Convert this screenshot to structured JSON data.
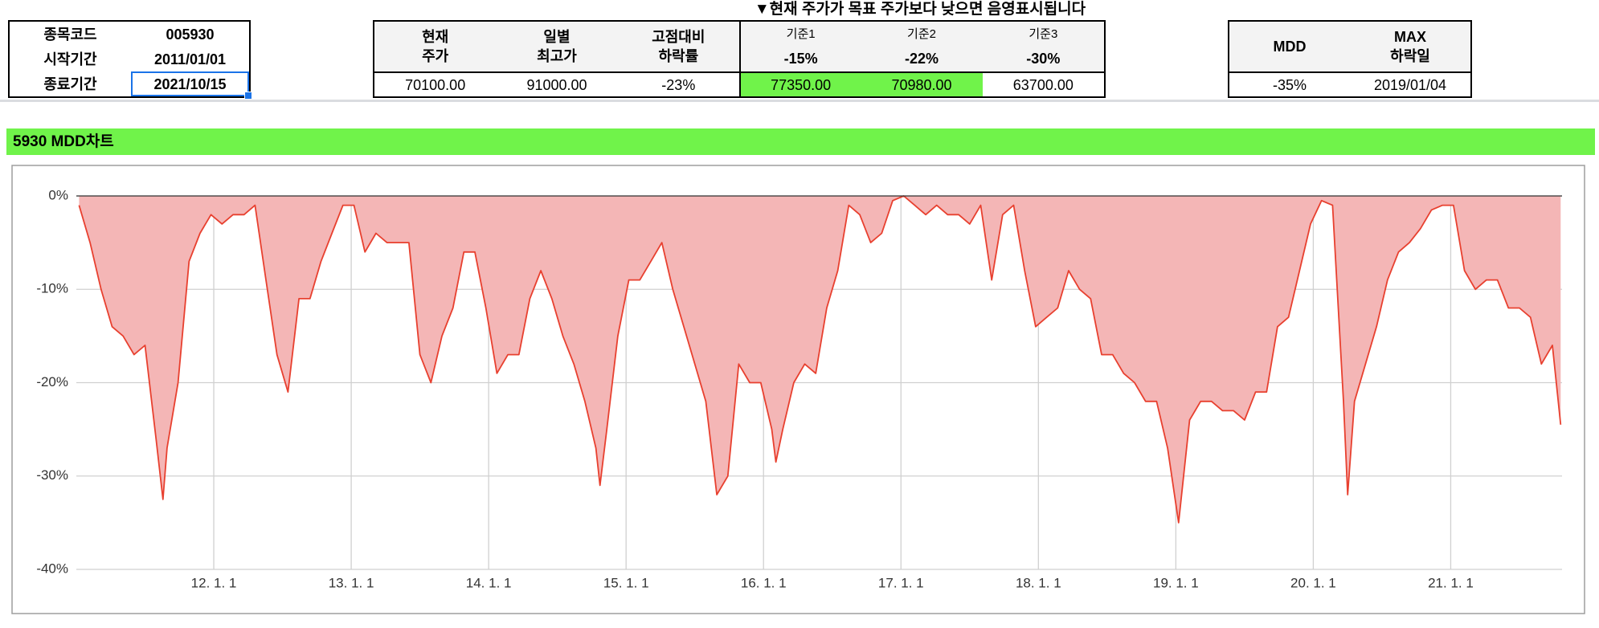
{
  "info": {
    "rows": [
      [
        "종목코드",
        "005930"
      ],
      [
        "시작기간",
        "2011/01/01"
      ],
      [
        "종료기간",
        "2021/10/15"
      ]
    ]
  },
  "price_table": {
    "note": "▼현재 주가가 목표 주가보다 낮으면 음영표시됩니다^^",
    "headers": [
      [
        "현재",
        "주가"
      ],
      [
        "일별",
        "최고가"
      ],
      [
        "고점대비",
        "하락률"
      ]
    ],
    "criteria": [
      {
        "name": "기준1",
        "rate": "-15%"
      },
      {
        "name": "기준2",
        "rate": "-22%"
      },
      {
        "name": "기준3",
        "rate": "-30%"
      }
    ],
    "values": [
      "70100.00",
      "91000.00",
      "-23%",
      "77350.00",
      "70980.00",
      "63700.00"
    ],
    "highlight": [
      false,
      false,
      false,
      true,
      true,
      false
    ],
    "highlight_color": "#70f34a"
  },
  "mdd_table": {
    "headers": [
      [
        "MDD"
      ],
      [
        "MAX",
        "하락일"
      ]
    ],
    "values": [
      "-35%",
      "2019/01/04"
    ]
  },
  "chart_data": {
    "type": "area",
    "title": "5930 MDD차트",
    "title_color": "#70f34a",
    "xlim": [
      2011,
      2021.81
    ],
    "xticks": [
      {
        "value": 2012,
        "label": "12. 1. 1"
      },
      {
        "value": 2013,
        "label": "13. 1. 1"
      },
      {
        "value": 2014,
        "label": "14. 1. 1"
      },
      {
        "value": 2015,
        "label": "15. 1. 1"
      },
      {
        "value": 2016,
        "label": "16. 1. 1"
      },
      {
        "value": 2017,
        "label": "17. 1. 1"
      },
      {
        "value": 2018,
        "label": "18. 1. 1"
      },
      {
        "value": 2019,
        "label": "19. 1. 1"
      },
      {
        "value": 2020,
        "label": "20. 1. 1"
      },
      {
        "value": 2021,
        "label": "21. 1. 1"
      }
    ],
    "ylim": [
      -40,
      0
    ],
    "yticks": [
      {
        "value": 0,
        "label": "0%"
      },
      {
        "value": -10,
        "label": "-10%"
      },
      {
        "value": -20,
        "label": "-20%"
      },
      {
        "value": -30,
        "label": "-30%"
      },
      {
        "value": -40,
        "label": "-40%"
      }
    ],
    "grid": true,
    "x": [
      2011.02,
      2011.1,
      2011.18,
      2011.26,
      2011.34,
      2011.42,
      2011.5,
      2011.58,
      2011.63,
      2011.66,
      2011.74,
      2011.82,
      2011.9,
      2011.98,
      2012.06,
      2012.14,
      2012.22,
      2012.3,
      2012.38,
      2012.46,
      2012.54,
      2012.62,
      2012.7,
      2012.78,
      2012.86,
      2012.94,
      2013.02,
      2013.1,
      2013.18,
      2013.26,
      2013.34,
      2013.42,
      2013.5,
      2013.58,
      2013.66,
      2013.74,
      2013.82,
      2013.9,
      2013.98,
      2014.06,
      2014.14,
      2014.22,
      2014.3,
      2014.38,
      2014.46,
      2014.54,
      2014.62,
      2014.7,
      2014.78,
      2014.81,
      2014.86,
      2014.94,
      2015.02,
      2015.1,
      2015.18,
      2015.26,
      2015.34,
      2015.42,
      2015.5,
      2015.58,
      2015.66,
      2015.74,
      2015.82,
      2015.9,
      2015.98,
      2016.06,
      2016.09,
      2016.14,
      2016.22,
      2016.3,
      2016.38,
      2016.46,
      2016.54,
      2016.62,
      2016.7,
      2016.78,
      2016.86,
      2016.94,
      2017.02,
      2017.1,
      2017.18,
      2017.26,
      2017.34,
      2017.42,
      2017.5,
      2017.58,
      2017.66,
      2017.74,
      2017.82,
      2017.9,
      2017.98,
      2018.06,
      2018.14,
      2018.22,
      2018.3,
      2018.38,
      2018.46,
      2018.54,
      2018.62,
      2018.7,
      2018.78,
      2018.86,
      2018.94,
      2019.02,
      2019.1,
      2019.18,
      2019.26,
      2019.34,
      2019.42,
      2019.5,
      2019.58,
      2019.66,
      2019.74,
      2019.82,
      2019.9,
      2019.98,
      2020.06,
      2020.14,
      2020.22,
      2020.25,
      2020.3,
      2020.38,
      2020.46,
      2020.54,
      2020.62,
      2020.7,
      2020.78,
      2020.86,
      2020.94,
      2021.02,
      2021.1,
      2021.18,
      2021.26,
      2021.34,
      2021.42,
      2021.5,
      2021.58,
      2021.66,
      2021.74,
      2021.8
    ],
    "series": [
      {
        "color": "#e8402f",
        "fill": "#f4b6b6",
        "values": [
          -1,
          -5,
          -10,
          -14,
          -15,
          -17,
          -16,
          -26,
          -32.5,
          -27,
          -20,
          -7,
          -4,
          -2,
          -3,
          -2,
          -2,
          -1,
          -9,
          -17,
          -21,
          -11,
          -11,
          -7,
          -4,
          -1,
          -1,
          -6,
          -4,
          -5,
          -5,
          -5,
          -17,
          -20,
          -15,
          -12,
          -6,
          -6,
          -12,
          -19,
          -17,
          -17,
          -11,
          -8,
          -11,
          -15,
          -18,
          -22,
          -27,
          -31,
          -25,
          -15,
          -9,
          -9,
          -7,
          -5,
          -10,
          -14,
          -18,
          -22,
          -32,
          -30,
          -18,
          -20,
          -20,
          -25,
          -28.5,
          -25,
          -20,
          -18,
          -19,
          -12,
          -8,
          -1,
          -2,
          -5,
          -4,
          -0.5,
          0,
          -1,
          -2,
          -1,
          -2,
          -2,
          -3,
          -1,
          -9,
          -2,
          -1,
          -8,
          -14,
          -13,
          -12,
          -8,
          -10,
          -11,
          -17,
          -17,
          -19,
          -20,
          -22,
          -22,
          -27,
          -35,
          -24,
          -22,
          -22,
          -23,
          -23,
          -24,
          -21,
          -21,
          -14,
          -13,
          -8,
          -3,
          -0.5,
          -1,
          -22,
          -32,
          -22,
          -18,
          -14,
          -9,
          -6,
          -5,
          -3.5,
          -1.5,
          -1,
          -1,
          -8,
          -10,
          -9,
          -9,
          -12,
          -12,
          -13,
          -18,
          -16,
          -24.5
        ]
      }
    ]
  }
}
